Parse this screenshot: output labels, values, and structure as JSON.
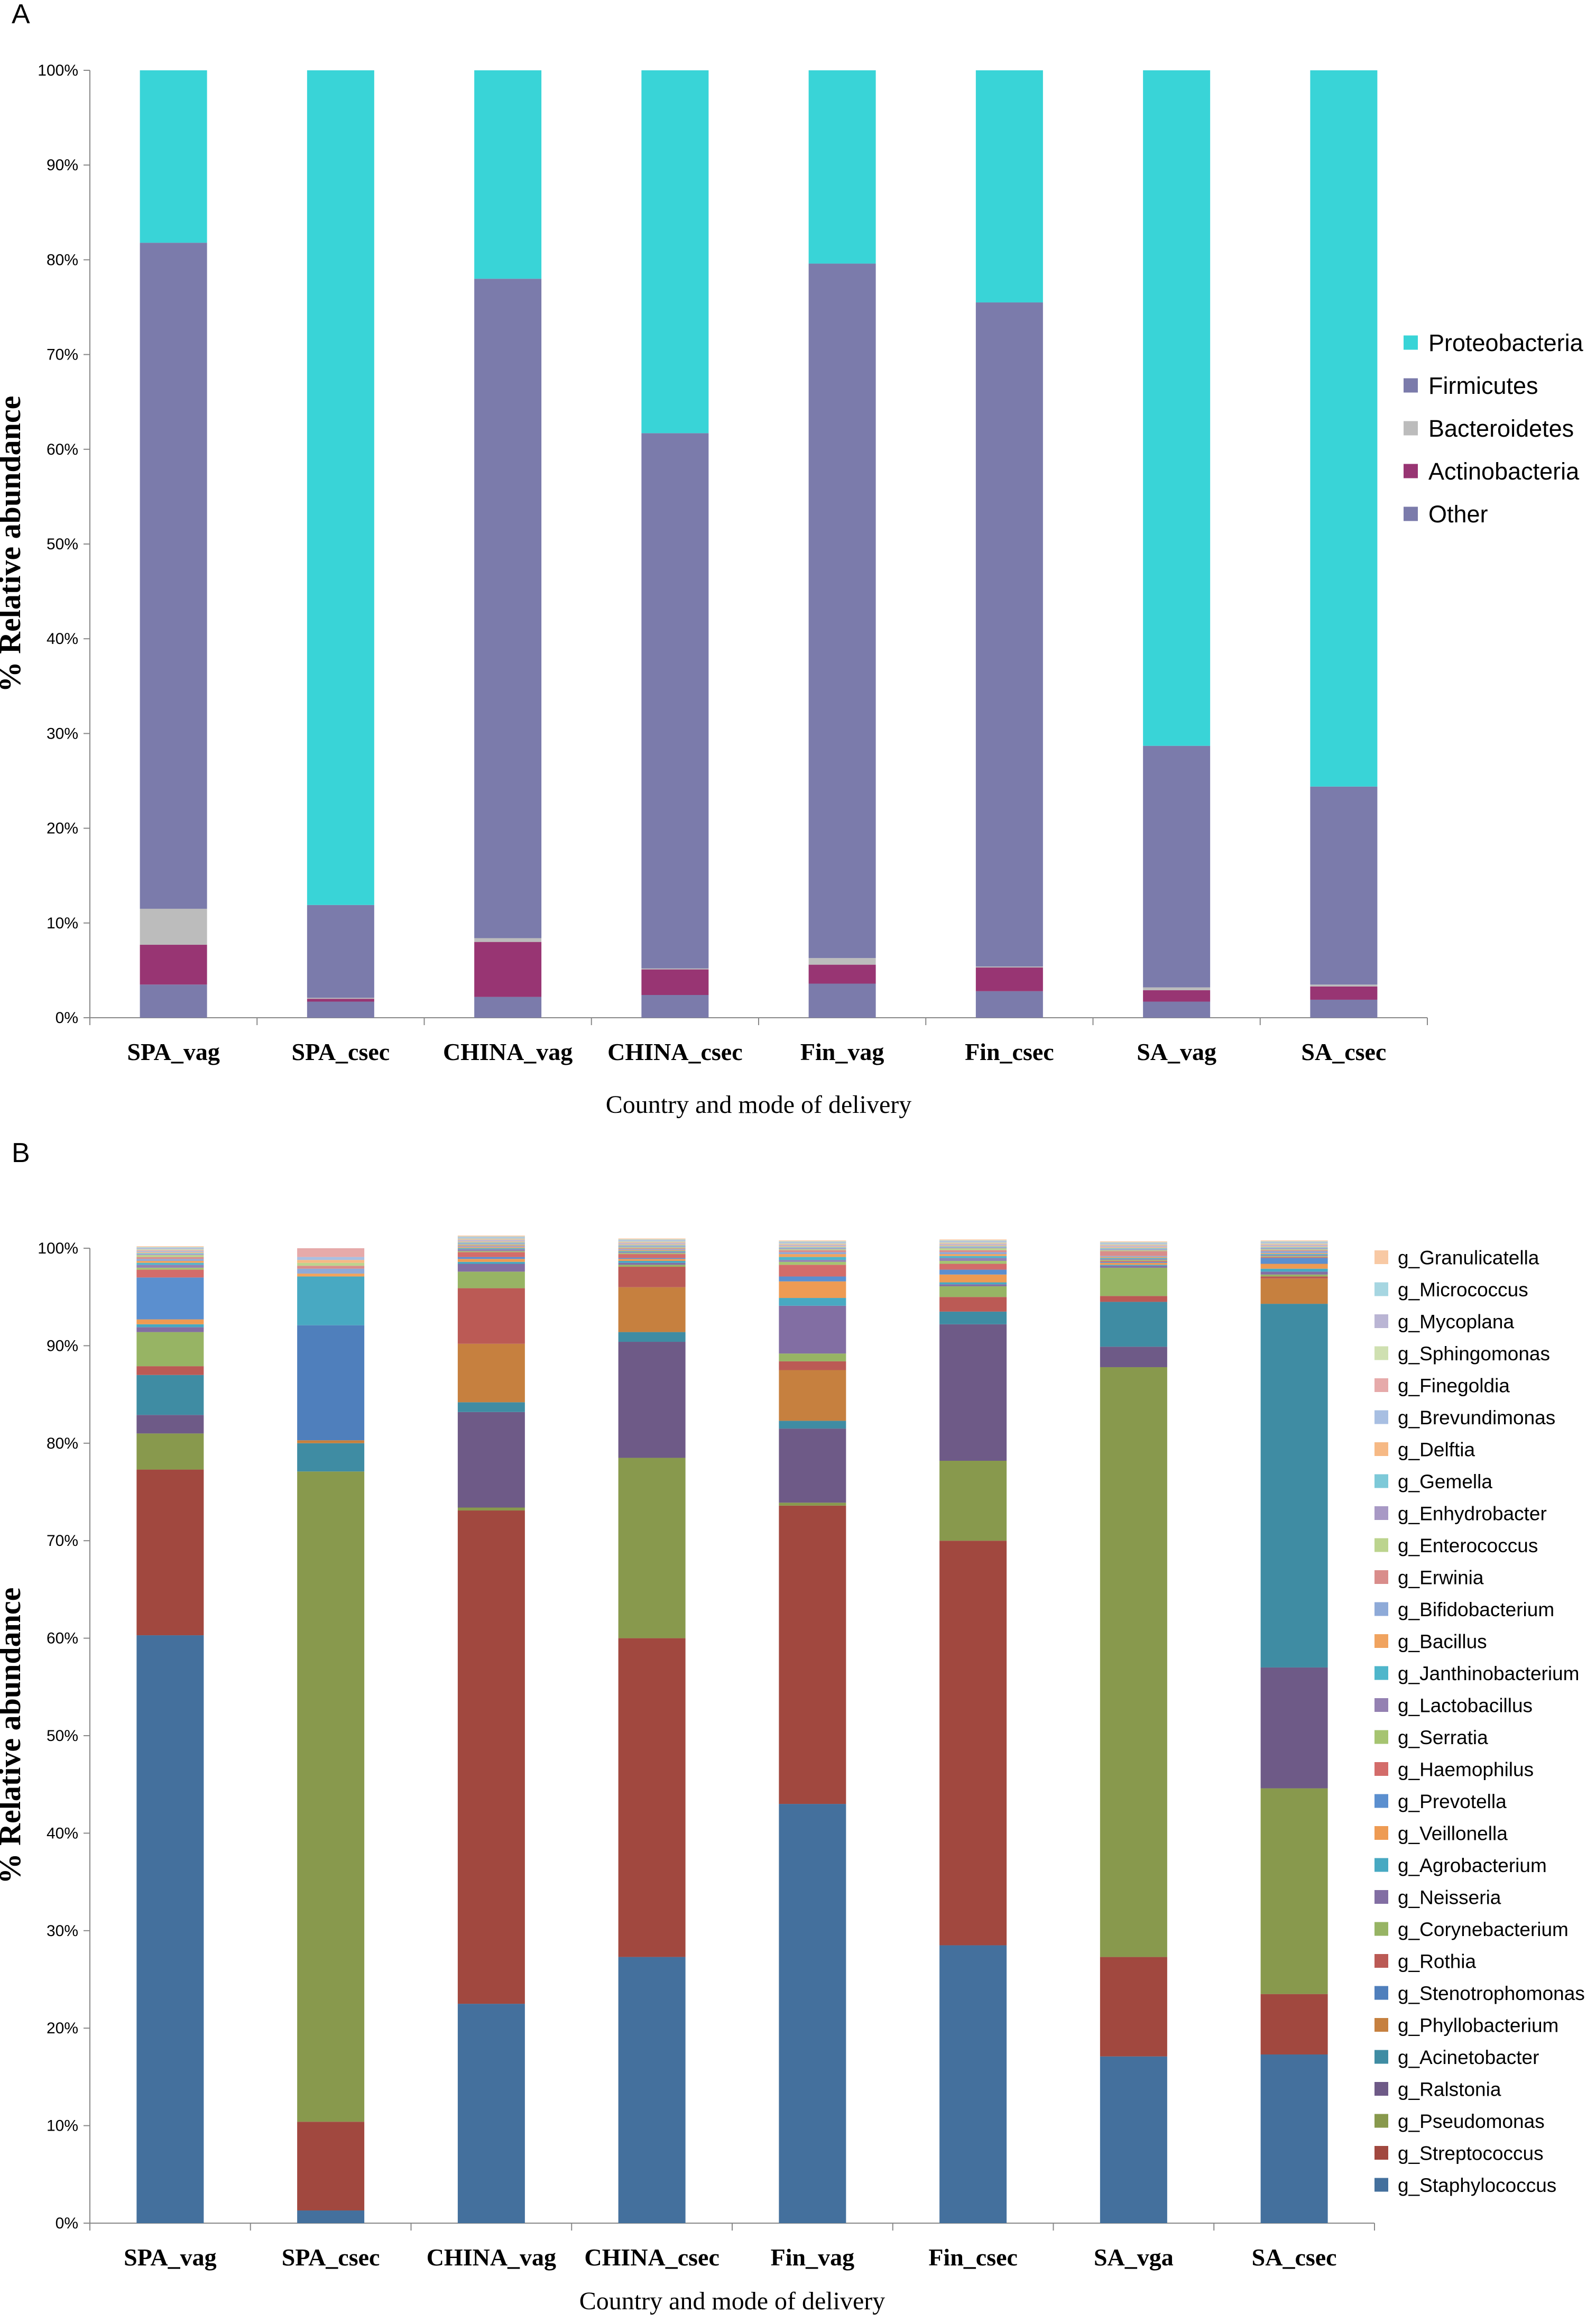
{
  "chart_data": [
    {
      "panel_label": "A",
      "type": "bar",
      "stacked": true,
      "title": "",
      "xlabel": "Country and mode of delivery",
      "ylabel": "% Relative abundance",
      "ylim": [
        0,
        100
      ],
      "yticks": [
        "0%",
        "10%",
        "20%",
        "30%",
        "40%",
        "50%",
        "60%",
        "70%",
        "80%",
        "90%",
        "100%"
      ],
      "categories": [
        "SPA_vag",
        "SPA_csec",
        "CHINA_vag",
        "CHINA_csec",
        "Fin_vag",
        "Fin_csec",
        "SA_vag",
        "SA_csec"
      ],
      "legend_position": "right",
      "series": [
        {
          "name": "Other",
          "color": "#7b7bab",
          "values": [
            3.5,
            1.7,
            2.2,
            2.4,
            3.6,
            2.8,
            1.7,
            1.9
          ]
        },
        {
          "name": "Actinobacteria",
          "color": "#983573",
          "values": [
            4.2,
            0.3,
            5.8,
            2.7,
            2.0,
            2.5,
            1.2,
            1.4
          ]
        },
        {
          "name": "Bacteroidetes",
          "color": "#bcbcbc",
          "values": [
            3.8,
            0.1,
            0.4,
            0.1,
            0.7,
            0.1,
            0.3,
            0.2
          ]
        },
        {
          "name": "Firmicutes",
          "color": "#7b7bab",
          "values": [
            70.3,
            9.8,
            69.6,
            56.5,
            73.3,
            70.1,
            25.5,
            20.9
          ]
        },
        {
          "name": "Proteobacteria",
          "color": "#39d4d7",
          "values": [
            18.2,
            88.1,
            22.0,
            38.3,
            20.4,
            24.5,
            71.3,
            75.6
          ]
        }
      ],
      "legend": [
        "Proteobacteria",
        "Firmicutes",
        "Bacteroidetes",
        "Actinobacteria",
        "Other"
      ]
    },
    {
      "panel_label": "B",
      "type": "bar",
      "stacked": true,
      "title": "",
      "xlabel": "Country and mode of delivery",
      "ylabel": "% Relative abundance",
      "ylim": [
        0,
        100
      ],
      "yticks": [
        "0%",
        "10%",
        "20%",
        "30%",
        "40%",
        "50%",
        "60%",
        "70%",
        "80%",
        "90%",
        "100%"
      ],
      "categories": [
        "SPA_vag",
        "SPA_csec",
        "CHINA_vag",
        "CHINA_csec",
        "Fin_vag",
        "Fin_csec",
        "SA_vga",
        "SA_csec"
      ],
      "legend_position": "right",
      "series": [
        {
          "name": "g_Staphylococcus",
          "color": "#44709d",
          "values": [
            60.3,
            1.3,
            22.5,
            27.3,
            43.0,
            28.5,
            17.1,
            17.3
          ]
        },
        {
          "name": "g_Streptococcus",
          "color": "#a1483f",
          "values": [
            17.0,
            9.1,
            50.6,
            32.7,
            30.6,
            41.5,
            10.2,
            6.2
          ]
        },
        {
          "name": "g_Pseudomonas",
          "color": "#88994d",
          "values": [
            3.7,
            66.7,
            0.3,
            18.5,
            0.3,
            8.2,
            60.5,
            21.1
          ]
        },
        {
          "name": "g_Ralstonia",
          "color": "#6e5a87",
          "values": [
            1.9,
            0.0,
            9.8,
            11.9,
            7.6,
            14.0,
            2.1,
            12.4
          ]
        },
        {
          "name": "g_Acinetobacter",
          "color": "#3f8ca3",
          "values": [
            4.1,
            2.9,
            1.0,
            1.0,
            0.8,
            1.3,
            4.6,
            37.3
          ]
        },
        {
          "name": "g_Phyllobacterium",
          "color": "#c6803f",
          "values": [
            0.0,
            0.3,
            6.0,
            4.6,
            5.2,
            0.0,
            0.0,
            2.6
          ]
        },
        {
          "name": "g_Stenotrophomonas",
          "color": "#4f7fbc",
          "values": [
            0.0,
            11.8,
            0.0,
            0.0,
            0.0,
            0.0,
            0.0,
            0.0
          ]
        },
        {
          "name": "g_Rothia",
          "color": "#bb5a55",
          "values": [
            0.9,
            0.0,
            5.7,
            2.1,
            0.9,
            1.5,
            0.6,
            0.2
          ]
        },
        {
          "name": "g_Corynebacterium",
          "color": "#97b464",
          "values": [
            3.5,
            0.0,
            1.7,
            0.2,
            0.8,
            1.1,
            2.9,
            0.2
          ]
        },
        {
          "name": "g_Neisseria",
          "color": "#826ea3",
          "values": [
            0.5,
            0.0,
            0.8,
            0.2,
            4.9,
            0.2,
            0.2,
            0.3
          ]
        },
        {
          "name": "g_Agrobacterium",
          "color": "#48a9c2",
          "values": [
            0.3,
            5.0,
            0.2,
            0.2,
            0.8,
            0.2,
            0.1,
            0.3
          ]
        },
        {
          "name": "g_Veillonella",
          "color": "#ee9b53",
          "values": [
            0.5,
            0.0,
            0.3,
            0.2,
            1.7,
            0.8,
            0.2,
            0.5
          ]
        },
        {
          "name": "g_Prevotella",
          "color": "#5b8fcf",
          "values": [
            4.3,
            0.0,
            0.2,
            0.1,
            0.5,
            0.5,
            0.1,
            0.6
          ]
        },
        {
          "name": "g_Haemophilus",
          "color": "#d36c6a",
          "values": [
            0.8,
            0.0,
            0.5,
            0.4,
            1.2,
            0.6,
            0.1,
            0.1
          ]
        },
        {
          "name": "g_Serratia",
          "color": "#a6c471",
          "values": [
            0.2,
            0.0,
            0.1,
            0.1,
            0.3,
            0.3,
            0.1,
            0.1
          ]
        },
        {
          "name": "g_Lactobacillus",
          "color": "#9481b2",
          "values": [
            0.3,
            0.0,
            0.2,
            0.1,
            0.2,
            0.3,
            0.1,
            0.1
          ]
        },
        {
          "name": "g_Janthinobacterium",
          "color": "#4fb6cb",
          "values": [
            0.2,
            0.0,
            0.1,
            0.1,
            0.3,
            0.2,
            0.1,
            0.1
          ]
        },
        {
          "name": "g_Bacillus",
          "color": "#f0a35f",
          "values": [
            0.2,
            0.3,
            0.1,
            0.1,
            0.3,
            0.2,
            0.1,
            0.1
          ]
        },
        {
          "name": "g_Bifidobacterium",
          "color": "#8eaad8",
          "values": [
            0.2,
            0.5,
            0.1,
            0.1,
            0.2,
            0.2,
            0.1,
            0.2
          ]
        },
        {
          "name": "g_Erwinia",
          "color": "#d98d8b",
          "values": [
            0.2,
            0.3,
            0.1,
            0.1,
            0.2,
            0.2,
            0.5,
            0.1
          ]
        },
        {
          "name": "g_Enterococcus",
          "color": "#bcd48e",
          "values": [
            0.2,
            0.3,
            0.1,
            0.1,
            0.1,
            0.2,
            0.1,
            0.1
          ]
        },
        {
          "name": "g_Enhydrobacter",
          "color": "#a899c5",
          "values": [
            0.1,
            0.0,
            0.1,
            0.1,
            0.1,
            0.1,
            0.1,
            0.1
          ]
        },
        {
          "name": "g_Gemella",
          "color": "#7dc9d8",
          "values": [
            0.1,
            0.0,
            0.1,
            0.1,
            0.1,
            0.1,
            0.1,
            0.1
          ]
        },
        {
          "name": "g_Delftia",
          "color": "#f6b985",
          "values": [
            0.1,
            0.3,
            0.1,
            0.1,
            0.1,
            0.1,
            0.1,
            0.1
          ]
        },
        {
          "name": "g_Brevundimonas",
          "color": "#a8bfe2",
          "values": [
            0.1,
            0.3,
            0.1,
            0.1,
            0.1,
            0.1,
            0.1,
            0.1
          ]
        },
        {
          "name": "g_Finegoldia",
          "color": "#e6aaaa",
          "values": [
            0.1,
            0.9,
            0.1,
            0.1,
            0.1,
            0.1,
            0.1,
            0.1
          ]
        },
        {
          "name": "g_Sphingomonas",
          "color": "#cfe0b1",
          "values": [
            0.1,
            0.0,
            0.1,
            0.1,
            0.1,
            0.1,
            0.1,
            0.1
          ]
        },
        {
          "name": "g_Mycoplana",
          "color": "#bab5d4",
          "values": [
            0.1,
            0.0,
            0.1,
            0.1,
            0.1,
            0.1,
            0.1,
            0.1
          ]
        },
        {
          "name": "g_Micrococcus",
          "color": "#a6d6e1",
          "values": [
            0.1,
            0.0,
            0.1,
            0.1,
            0.1,
            0.1,
            0.1,
            0.1
          ]
        },
        {
          "name": "g_Granulicatella",
          "color": "#f8c9a4",
          "values": [
            0.1,
            0.0,
            0.1,
            0.1,
            0.1,
            0.1,
            0.1,
            0.1
          ]
        }
      ],
      "legend": [
        "g_Granulicatella",
        "g_Micrococcus",
        "g_Mycoplana",
        "g_Sphingomonas",
        "g_Finegoldia",
        "g_Brevundimonas",
        "g_Delftia",
        "g_Gemella",
        "g_Enhydrobacter",
        "g_Enterococcus",
        "g_Erwinia",
        "g_Bifidobacterium",
        "g_Bacillus",
        "g_Janthinobacterium",
        "g_Lactobacillus",
        "g_Serratia",
        "g_Haemophilus",
        "g_Prevotella",
        "g_Veillonella",
        "g_Agrobacterium",
        "g_Neisseria",
        "g_Corynebacterium",
        "g_Rothia",
        "g_Stenotrophomonas",
        "g_Phyllobacterium",
        "g_Acinetobacter",
        "g_Ralstonia",
        "g_Pseudomonas",
        "g_Streptococcus",
        "g_Staphylococcus"
      ]
    }
  ]
}
